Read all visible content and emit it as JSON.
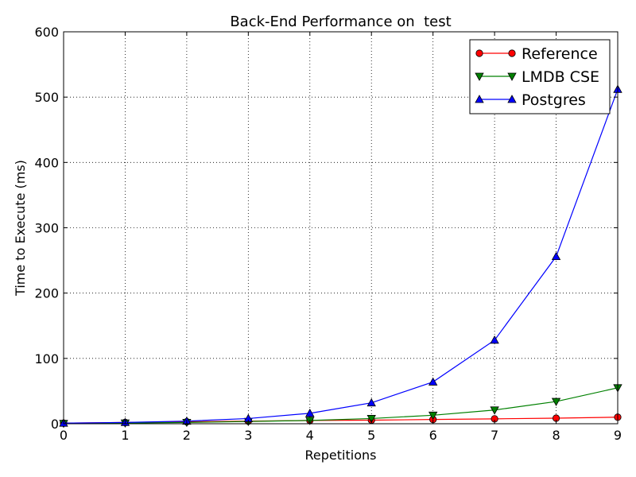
{
  "chart_data": {
    "type": "line",
    "title": "Back-End Performance on  test",
    "xlabel": "Repetitions",
    "ylabel": "Time to Execute (ms)",
    "xlim": [
      0,
      9
    ],
    "ylim": [
      0,
      600
    ],
    "x_ticks": [
      "0",
      "1",
      "2",
      "3",
      "4",
      "5",
      "6",
      "7",
      "8",
      "9"
    ],
    "y_ticks": [
      "0",
      "100",
      "200",
      "300",
      "400",
      "500",
      "600"
    ],
    "grid": true,
    "legend_position": "top-right",
    "x": [
      0,
      1,
      2,
      3,
      4,
      5,
      6,
      7,
      8,
      9
    ],
    "series": [
      {
        "name": "Reference",
        "color": "#ff0000",
        "marker": "circle",
        "values": [
          1,
          2,
          3,
          4,
          5,
          5.5,
          6.5,
          7.5,
          8.5,
          10
        ]
      },
      {
        "name": "LMDB CSE",
        "color": "#008000",
        "marker": "triangle-down",
        "values": [
          0.5,
          1,
          2,
          3.5,
          5,
          8,
          13,
          21,
          34,
          55
        ]
      },
      {
        "name": "Postgres",
        "color": "#0000ff",
        "marker": "triangle-up",
        "values": [
          1,
          2,
          4,
          8,
          16,
          32,
          64,
          128,
          256,
          512
        ]
      }
    ]
  }
}
